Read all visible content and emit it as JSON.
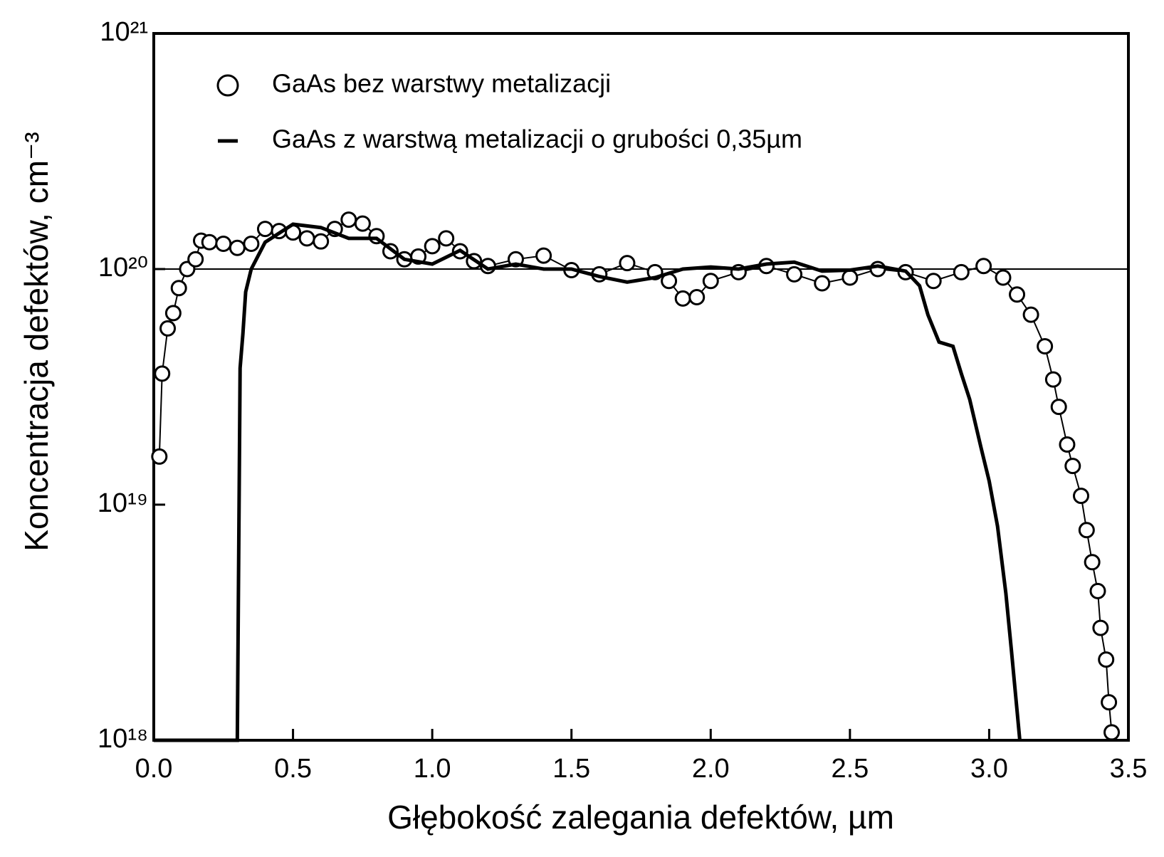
{
  "chart_data": {
    "type": "line",
    "xlabel": "Głębokość zalegania defektów, µm",
    "ylabel": "Koncentracja defektów, cm⁻³",
    "xlim": [
      0,
      3.5
    ],
    "xticks": [
      {
        "value": 0,
        "label": "0.0"
      },
      0.5,
      {
        "value": 1,
        "label": "1.0"
      },
      1.5,
      {
        "value": 2,
        "label": "2.0"
      },
      2.5,
      {
        "value": 3,
        "label": "3.0"
      },
      3.5
    ],
    "ylim": [
      1e+18,
      1e+21
    ],
    "yticks": [
      {
        "value": 1e+18,
        "label": "10¹⁸"
      },
      {
        "value": 1e+19,
        "label": "10¹⁹"
      },
      {
        "value": 1e+20,
        "label": "10²⁰"
      },
      {
        "value": 1e+21,
        "label": "10²¹"
      }
    ],
    "ylog": true,
    "legend": "upper left",
    "series": [
      {
        "name": "GaAs bez warstwy metalizacji",
        "color": "#000000",
        "marker": "circle",
        "x": [
          0.02,
          0.03,
          0.05,
          0.07,
          0.09,
          0.12,
          0.15,
          0.17,
          0.2,
          0.25,
          0.3,
          0.35,
          0.4,
          0.45,
          0.5,
          0.55,
          0.6,
          0.65,
          0.7,
          0.75,
          0.8,
          0.85,
          0.9,
          0.95,
          1.0,
          1.05,
          1.1,
          1.15,
          1.2,
          1.3,
          1.4,
          1.5,
          1.6,
          1.7,
          1.8,
          1.85,
          1.9,
          1.95,
          2.0,
          2.1,
          2.2,
          2.3,
          2.4,
          2.5,
          2.6,
          2.7,
          2.8,
          2.9,
          2.98,
          3.05,
          3.1,
          3.15,
          3.2,
          3.23,
          3.25,
          3.28,
          3.3,
          3.33,
          3.35,
          3.37,
          3.39,
          3.4,
          3.42,
          3.43,
          3.44
        ],
        "values": [
          1.6e+19,
          3.6e+19,
          5.6e+19,
          6.5e+19,
          8.3e+19,
          1e+20,
          1.1e+20,
          1.32e+20,
          1.3e+20,
          1.28e+20,
          1.23e+20,
          1.28e+20,
          1.48e+20,
          1.45e+20,
          1.43e+20,
          1.35e+20,
          1.31e+20,
          1.48e+20,
          1.62e+20,
          1.56e+20,
          1.38e+20,
          1.19e+20,
          1.1e+20,
          1.13e+20,
          1.25e+20,
          1.35e+20,
          1.19e+20,
          1.08e+20,
          1.03e+20,
          1.1e+20,
          1.14e+20,
          9.9e+19,
          9.5e+19,
          1.06e+20,
          9.7e+19,
          8.9e+19,
          7.5e+19,
          7.6e+19,
          8.9e+19,
          9.7e+19,
          1.03e+20,
          9.5e+19,
          8.7e+19,
          9.2e+19,
          1e+20,
          9.7e+19,
          8.9e+19,
          9.7e+19,
          1.03e+20,
          9.2e+19,
          7.8e+19,
          6.4e+19,
          4.7e+19,
          3.4e+19,
          2.6e+19,
          1.8e+19,
          1.46e+19,
          1.09e+19,
          7.8e+18,
          5.7e+18,
          4.3e+18,
          3e+18,
          2.2e+18,
          1.45e+18,
          1.08e+18
        ]
      },
      {
        "name": "GaAs z warstwą metalizacji o grubości 0,35µm",
        "color": "#000000",
        "marker": "none",
        "x": [
          0,
          0.3,
          0.31,
          0.32,
          0.33,
          0.35,
          0.4,
          0.5,
          0.6,
          0.7,
          0.8,
          0.9,
          1.0,
          1.1,
          1.2,
          1.3,
          1.4,
          1.5,
          1.6,
          1.7,
          1.8,
          1.9,
          2.0,
          2.1,
          2.2,
          2.3,
          2.4,
          2.5,
          2.6,
          2.7,
          2.75,
          2.78,
          2.82,
          2.87,
          2.9,
          2.93,
          2.97,
          3.0,
          3.03,
          3.06,
          3.08,
          3.1,
          3.11
        ],
        "values": [
          1e+18,
          1e+18,
          3.8e+19,
          5.3e+19,
          8e+19,
          1e+20,
          1.3e+20,
          1.55e+20,
          1.5e+20,
          1.35e+20,
          1.35e+20,
          1.1e+20,
          1.05e+20,
          1.2e+20,
          1e+20,
          1.05e+20,
          1e+20,
          1e+20,
          9.3e+19,
          8.8e+19,
          9.2e+19,
          1e+20,
          1.02e+20,
          1e+20,
          1.05e+20,
          1.07e+20,
          9.8e+19,
          9.9e+19,
          1.03e+20,
          9.8e+19,
          8.5e+19,
          6.4e+19,
          4.9e+19,
          4.7e+19,
          3.6e+19,
          2.8e+19,
          1.76e+19,
          1.26e+19,
          8.1e+18,
          4.2e+18,
          2.4e+18,
          1.34e+18,
          1e+18
        ]
      }
    ]
  }
}
